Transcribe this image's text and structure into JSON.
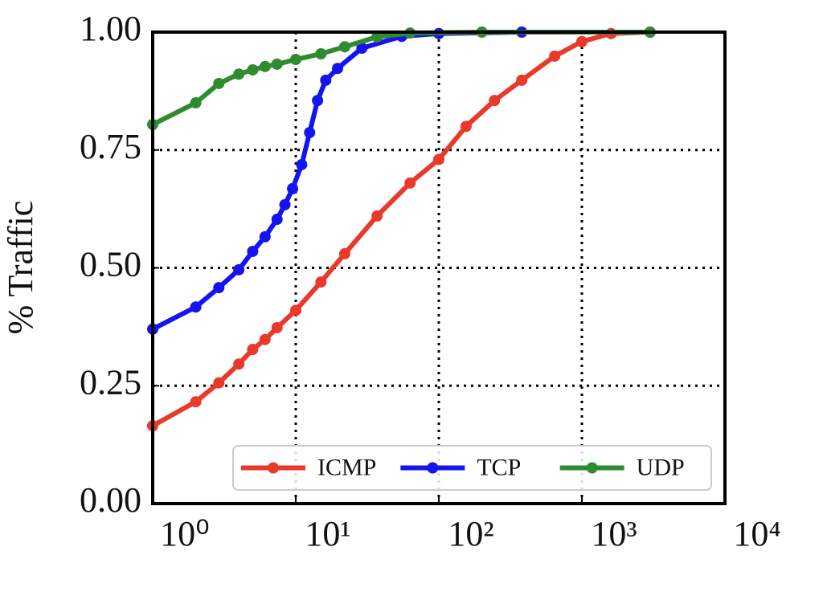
{
  "chart_data": {
    "type": "line",
    "xscale": "log",
    "ylabel": "% Traffic",
    "xlim": [
      1,
      10000
    ],
    "xticks": [
      {
        "value": 1,
        "label": "10⁰"
      },
      {
        "value": 10,
        "label": "10¹"
      },
      {
        "value": 100,
        "label": "10²"
      },
      {
        "value": 1000,
        "label": "10³"
      },
      {
        "value": 10000,
        "label": "10⁴"
      }
    ],
    "ylim": [
      0,
      1
    ],
    "yticks": [
      {
        "value": 0,
        "label": "0.00"
      },
      {
        "value": 0.25,
        "label": "0.25"
      },
      {
        "value": 0.5,
        "label": "0.50"
      },
      {
        "value": 0.75,
        "label": "0.75"
      },
      {
        "value": 1,
        "label": "1.00"
      }
    ],
    "grid": true,
    "legend": "lower right",
    "series": [
      {
        "name": "ICMP",
        "color": "#e8392b",
        "x": [
          1,
          2,
          2.9,
          4,
          5,
          6.1,
          7.4,
          10,
          15,
          22,
          37,
          63,
          100,
          155,
          245,
          380,
          645,
          1000,
          1600,
          3000
        ],
        "values": [
          0.165,
          0.216,
          0.256,
          0.296,
          0.327,
          0.348,
          0.373,
          0.41,
          0.47,
          0.53,
          0.61,
          0.68,
          0.73,
          0.8,
          0.855,
          0.898,
          0.949,
          0.98,
          0.997,
          1.0
        ]
      },
      {
        "name": "TCP",
        "color": "#1414f0",
        "x": [
          1,
          2,
          2.9,
          4,
          5,
          6.1,
          7.4,
          8.4,
          9.5,
          11,
          12.5,
          14.2,
          16.2,
          19.6,
          29,
          55,
          100,
          380,
          3000
        ],
        "values": [
          0.37,
          0.417,
          0.458,
          0.496,
          0.535,
          0.566,
          0.603,
          0.634,
          0.668,
          0.719,
          0.787,
          0.855,
          0.898,
          0.923,
          0.966,
          0.991,
          0.997,
          1.0,
          1.0
        ]
      },
      {
        "name": "UDP",
        "color": "#2e8b2e",
        "x": [
          1,
          2,
          2.9,
          4,
          5,
          6.1,
          7.4,
          10,
          15,
          22,
          37,
          63,
          200,
          3000
        ],
        "values": [
          0.804,
          0.85,
          0.891,
          0.911,
          0.92,
          0.927,
          0.932,
          0.942,
          0.954,
          0.969,
          0.99,
          0.998,
          1.0,
          1.0
        ]
      }
    ]
  }
}
